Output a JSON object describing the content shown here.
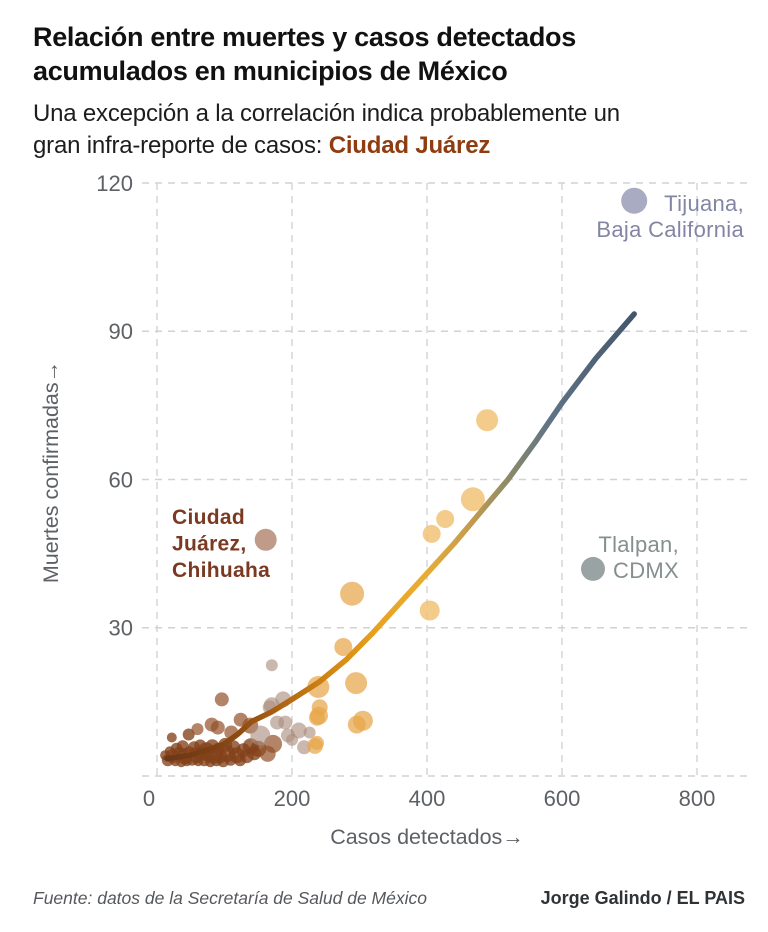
{
  "header": {
    "title_line1": "Relación entre muertes y casos detectados",
    "title_line2": "acumulados en municipios de México",
    "subtitle_line1": "Una excepción a la correlación indica probablemente un",
    "subtitle_line2_prefix": "gran infra-reporte de casos: ",
    "subtitle_highlight": "Ciudad Juárez",
    "highlight_color": "#8e3c10"
  },
  "footer": {
    "source": "Fuente: datos de la Secretaría de Salud de México",
    "credit": "Jorge Galindo / EL PAIS"
  },
  "chart_data": {
    "type": "scatter",
    "title": "Relación entre muertes y casos detectados acumulados en municipios de México",
    "subtitle": "Una excepción a la correlación indica probablemente un gran infra-reporte de casos: Ciudad Juárez",
    "xlabel": "Casos detectados→",
    "ylabel": "Muertes confirmadas→",
    "x_ticks": [
      0,
      200,
      400,
      600,
      800
    ],
    "y_ticks": [
      30,
      60,
      90,
      120
    ],
    "xlim": [
      0,
      875
    ],
    "ylim": [
      0,
      120
    ],
    "grid": "dashed",
    "grid_color": "#d2d2d2",
    "axis_text_color": "#5d6165",
    "point_colors": {
      "dark": {
        "fill": "#83411a",
        "opacity": 0.78
      },
      "brown": {
        "fill": "#935026",
        "opacity": 0.7
      },
      "mauve": {
        "fill": "#aa8c7e",
        "opacity": 0.62
      },
      "orange": {
        "fill": "#e8a64a",
        "opacity": 0.72
      },
      "lightorange": {
        "fill": "#f0bf72",
        "opacity": 0.82
      },
      "juarez": {
        "fill": "#c09b89",
        "opacity": 1
      },
      "tlalpan": {
        "fill": "#99a3a3",
        "opacity": 1
      },
      "tijuana": {
        "fill": "#a9abc2",
        "opacity": 1
      }
    },
    "points": [
      [
        12,
        4.2,
        5,
        "dark"
      ],
      [
        16,
        3.2,
        6,
        "dark"
      ],
      [
        19,
        5,
        5,
        "dark"
      ],
      [
        22,
        7.8,
        5,
        "dark"
      ],
      [
        23,
        4,
        7,
        "dark"
      ],
      [
        27,
        3,
        5,
        "dark"
      ],
      [
        29,
        5.5,
        6,
        "dark"
      ],
      [
        33,
        4.5,
        7,
        "dark"
      ],
      [
        36,
        2.8,
        5,
        "dark"
      ],
      [
        38,
        6,
        6,
        "dark"
      ],
      [
        41,
        4,
        8,
        "dark"
      ],
      [
        44,
        3,
        5,
        "dark"
      ],
      [
        47,
        8.4,
        6,
        "dark"
      ],
      [
        48,
        4.8,
        6,
        "dark"
      ],
      [
        52,
        3.5,
        7,
        "dark"
      ],
      [
        55,
        5.8,
        6,
        "dark"
      ],
      [
        58,
        4.2,
        8,
        "dark"
      ],
      [
        61,
        3,
        5,
        "dark"
      ],
      [
        64,
        6.2,
        6,
        "dark"
      ],
      [
        67,
        4.5,
        7,
        "dark"
      ],
      [
        70,
        3.2,
        6,
        "dark"
      ],
      [
        73,
        5.2,
        8,
        "dark"
      ],
      [
        76,
        4,
        6,
        "dark"
      ],
      [
        79,
        2.8,
        5,
        "dark"
      ],
      [
        82,
        6,
        7,
        "dark"
      ],
      [
        85,
        4.3,
        9,
        "dark"
      ],
      [
        88,
        3.2,
        6,
        "dark"
      ],
      [
        91,
        5.5,
        6,
        "dark"
      ],
      [
        94,
        4,
        7,
        "dark"
      ],
      [
        98,
        3,
        6,
        "dark"
      ],
      [
        101,
        6.3,
        7,
        "dark"
      ],
      [
        105,
        4.5,
        8,
        "dark"
      ],
      [
        109,
        3.3,
        6,
        "dark"
      ],
      [
        113,
        5.8,
        7,
        "dark"
      ],
      [
        118,
        4.2,
        8,
        "dark"
      ],
      [
        123,
        3.2,
        6,
        "dark"
      ],
      [
        128,
        5.2,
        7,
        "dark"
      ],
      [
        133,
        4,
        7,
        "dark"
      ],
      [
        139,
        6,
        8,
        "dark"
      ],
      [
        144,
        4.6,
        7,
        "dark"
      ],
      [
        150,
        5.5,
        8,
        "dark"
      ],
      [
        60,
        9.5,
        6,
        "brown"
      ],
      [
        81,
        10.4,
        7,
        "brown"
      ],
      [
        90,
        9.8,
        7,
        "brown"
      ],
      [
        96,
        15.5,
        7,
        "brown"
      ],
      [
        110,
        8.8,
        7,
        "brown"
      ],
      [
        124,
        11.4,
        7,
        "brown"
      ],
      [
        138,
        10.2,
        8,
        "brown"
      ],
      [
        164,
        4.5,
        8,
        "brown"
      ],
      [
        172,
        6.5,
        9,
        "brown"
      ],
      [
        153,
        8.2,
        10,
        "mauve"
      ],
      [
        167,
        13.9,
        7,
        "mauve"
      ],
      [
        170,
        22.4,
        6,
        "mauve"
      ],
      [
        170,
        14.3,
        8,
        "mauve"
      ],
      [
        178,
        10.8,
        7,
        "mauve"
      ],
      [
        187,
        15.5,
        8,
        "mauve"
      ],
      [
        190,
        10.8,
        7,
        "mauve"
      ],
      [
        194,
        8.2,
        7,
        "mauve"
      ],
      [
        200,
        7.3,
        6,
        "mauve"
      ],
      [
        210,
        9.2,
        8,
        "mauve"
      ],
      [
        218,
        5.8,
        7,
        "mauve"
      ],
      [
        226,
        8.8,
        6,
        "mauve"
      ],
      [
        234,
        6.1,
        8,
        "orange"
      ],
      [
        237,
        6.7,
        7,
        "orange"
      ],
      [
        237,
        11.8,
        8,
        "orange"
      ],
      [
        240,
        12.2,
        9,
        "orange"
      ],
      [
        241,
        13.9,
        8,
        "orange"
      ],
      [
        239,
        18,
        11,
        "orange"
      ],
      [
        276,
        26.1,
        9,
        "orange"
      ],
      [
        289,
        36.9,
        12,
        "orange"
      ],
      [
        295,
        18.8,
        11,
        "orange"
      ],
      [
        296,
        10.4,
        9,
        "orange"
      ],
      [
        305,
        11.2,
        10,
        "orange"
      ],
      [
        404,
        33.5,
        10,
        "lightorange"
      ],
      [
        407,
        49,
        9,
        "lightorange"
      ],
      [
        427,
        52,
        9,
        "lightorange"
      ],
      [
        468,
        56,
        12,
        "lightorange"
      ],
      [
        489,
        72,
        11,
        "lightorange"
      ],
      [
        161,
        47.8,
        11,
        "juarez"
      ],
      [
        646,
        41.9,
        12,
        "tlalpan"
      ],
      [
        707,
        116.4,
        13,
        "tijuana"
      ]
    ],
    "trendline": {
      "x": [
        15,
        50,
        80,
        100,
        120,
        140,
        170,
        200,
        240,
        280,
        320,
        360,
        400,
        440,
        480,
        520,
        560,
        600,
        650,
        707
      ],
      "y": [
        3.5,
        4.2,
        5.5,
        6.5,
        8.5,
        11,
        13,
        15.5,
        19,
        23.5,
        29,
        35,
        41,
        47,
        53.5,
        60,
        67.5,
        75.5,
        84.5,
        93.5
      ],
      "gradient": [
        [
          0,
          "#6b3817"
        ],
        [
          0.1,
          "#7d4014"
        ],
        [
          0.22,
          "#a55c12"
        ],
        [
          0.34,
          "#d08414"
        ],
        [
          0.45,
          "#e8a21e"
        ],
        [
          0.55,
          "#e9ad33"
        ],
        [
          0.65,
          "#c49b4e"
        ],
        [
          0.73,
          "#8d8a68"
        ],
        [
          0.82,
          "#5f7386"
        ],
        [
          1,
          "#44566b"
        ]
      ]
    },
    "annotations": [
      {
        "id": "tijuana",
        "lines": [
          "Tijuana,",
          "Baja California"
        ],
        "color": "#8286a4",
        "bold": false
      },
      {
        "id": "tlalpan",
        "lines": [
          "Tlalpan,",
          "CDMX"
        ],
        "color": "#84908f",
        "bold": false
      },
      {
        "id": "juarez",
        "lines": [
          "Ciudad",
          "Juárez,",
          "Chihuaha"
        ],
        "color": "#7b3922",
        "bold": true
      }
    ],
    "legend_position": "none"
  }
}
